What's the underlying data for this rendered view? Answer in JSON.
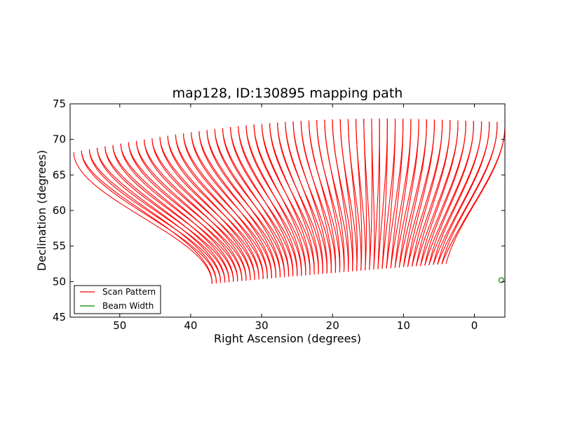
{
  "chart_data": {
    "type": "line",
    "title": "map128, ID:130895 mapping path",
    "xlabel": "Right Ascension (degrees)",
    "ylabel": "Declination (degrees)",
    "xlim": [
      57,
      -4.3
    ],
    "ylim": [
      45,
      75
    ],
    "x_ticks": [
      50,
      40,
      30,
      20,
      10,
      0
    ],
    "y_ticks": [
      45,
      50,
      55,
      60,
      65,
      70,
      75
    ],
    "x_tick_labels": [
      "50",
      "40",
      "30",
      "20",
      "10",
      "0"
    ],
    "y_tick_labels": [
      "45",
      "50",
      "55",
      "60",
      "65",
      "70",
      "75"
    ],
    "grid": false,
    "legend_position": "lower-left",
    "scan_lines": {
      "count": 56,
      "top_ra_range": [
        56.5,
        -4.3
      ],
      "top_dec_range": [
        68.2,
        72.4
      ],
      "top_dec_peak": 73.6,
      "bottom_ra_range": [
        37.0,
        4.0
      ],
      "bottom_dec_range": [
        50.0,
        52.5
      ],
      "bottom_dec_min": 49.8
    },
    "series": [
      {
        "name": "Scan Pattern",
        "color": "#ff0000",
        "points": [
          [
            56.5,
            68.0
          ],
          [
            38.0,
            50.2
          ],
          [
            37.4,
            68.2
          ],
          [
            36.5,
            49.9
          ],
          [
            27.0,
            71.0
          ],
          [
            26.0,
            51.3
          ],
          [
            19.0,
            72.8
          ],
          [
            18.0,
            52.2
          ],
          [
            12.0,
            73.5
          ],
          [
            11.0,
            52.5
          ],
          [
            5.0,
            72.9
          ],
          [
            4.2,
            52.5
          ],
          [
            -0.5,
            72.6
          ],
          [
            -4.3,
            72.4
          ]
        ]
      },
      {
        "name": "Beam Width",
        "color": "#008000",
        "points": [
          [
            -3.8,
            50.2
          ]
        ]
      }
    ]
  }
}
